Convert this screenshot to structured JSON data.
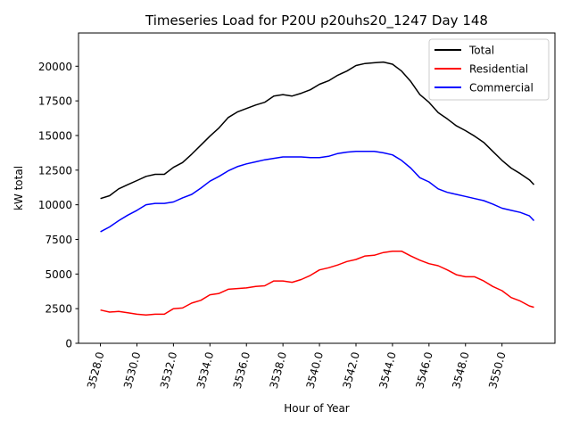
{
  "chart_data": {
    "type": "line",
    "title": "Timeseries Load for P20U p20uhs20_1247  Day 148",
    "xlabel": "Hour of Year",
    "ylabel": "kW total",
    "xlim": [
      3526.8,
      3552.9
    ],
    "ylim": [
      0,
      22400
    ],
    "grid": false,
    "legend_position": "top-right",
    "x_ticks": [
      3528,
      3530,
      3532,
      3534,
      3536,
      3538,
      3540,
      3542,
      3544,
      3546,
      3548,
      3550
    ],
    "x_tick_labels": [
      "3528.0",
      "3530.0",
      "3532.0",
      "3534.0",
      "3536.0",
      "3538.0",
      "3540.0",
      "3542.0",
      "3544.0",
      "3546.0",
      "3548.0",
      "3550.0"
    ],
    "y_ticks": [
      0,
      2500,
      5000,
      7500,
      10000,
      12500,
      15000,
      17500,
      20000
    ],
    "y_tick_labels": [
      "0",
      "2500",
      "5000",
      "7500",
      "10000",
      "12500",
      "15000",
      "17500",
      "20000"
    ],
    "x": [
      3528.0,
      3528.5,
      3529.0,
      3529.5,
      3530.0,
      3530.5,
      3531.0,
      3531.5,
      3532.0,
      3532.5,
      3533.0,
      3533.5,
      3534.0,
      3534.5,
      3535.0,
      3535.5,
      3536.0,
      3536.5,
      3537.0,
      3537.5,
      3538.0,
      3538.5,
      3539.0,
      3539.5,
      3540.0,
      3540.5,
      3541.0,
      3541.5,
      3542.0,
      3542.5,
      3543.0,
      3543.5,
      3544.0,
      3544.5,
      3545.0,
      3545.5,
      3546.0,
      3546.5,
      3547.0,
      3547.5,
      3548.0,
      3548.5,
      3549.0,
      3549.5,
      3550.0,
      3550.5,
      3551.0,
      3551.5,
      3551.75
    ],
    "series": [
      {
        "name": "Total",
        "color": "#000000",
        "values": [
          10450,
          10650,
          11150,
          11450,
          11750,
          12050,
          12200,
          12200,
          12700,
          13050,
          13650,
          14300,
          14950,
          15550,
          16300,
          16700,
          16950,
          17200,
          17400,
          17850,
          17950,
          17850,
          18050,
          18300,
          18700,
          18950,
          19350,
          19650,
          20050,
          20200,
          20250,
          20300,
          20150,
          19650,
          18900,
          17950,
          17400,
          16650,
          16200,
          15700,
          15350,
          14950,
          14500,
          13850,
          13200,
          12650,
          12250,
          11800,
          11450
        ]
      },
      {
        "name": "Residential",
        "color": "#ff0000",
        "values": [
          2400,
          2250,
          2300,
          2200,
          2100,
          2050,
          2100,
          2100,
          2500,
          2550,
          2900,
          3100,
          3500,
          3600,
          3900,
          3950,
          4000,
          4100,
          4150,
          4500,
          4500,
          4400,
          4600,
          4900,
          5300,
          5450,
          5650,
          5900,
          6050,
          6300,
          6350,
          6550,
          6650,
          6650,
          6300,
          6000,
          5750,
          5600,
          5300,
          4950,
          4800,
          4800,
          4500,
          4100,
          3800,
          3300,
          3050,
          2700,
          2600
        ]
      },
      {
        "name": "Commercial",
        "color": "#0000ff",
        "values": [
          8050,
          8400,
          8850,
          9250,
          9600,
          10000,
          10100,
          10100,
          10200,
          10500,
          10750,
          11200,
          11700,
          12050,
          12450,
          12750,
          12950,
          13100,
          13250,
          13350,
          13450,
          13450,
          13450,
          13400,
          13400,
          13500,
          13700,
          13800,
          13850,
          13850,
          13850,
          13750,
          13600,
          13200,
          12650,
          11950,
          11650,
          11150,
          10900,
          10750,
          10600,
          10450,
          10300,
          10050,
          9750,
          9600,
          9450,
          9200,
          8850
        ]
      }
    ]
  }
}
